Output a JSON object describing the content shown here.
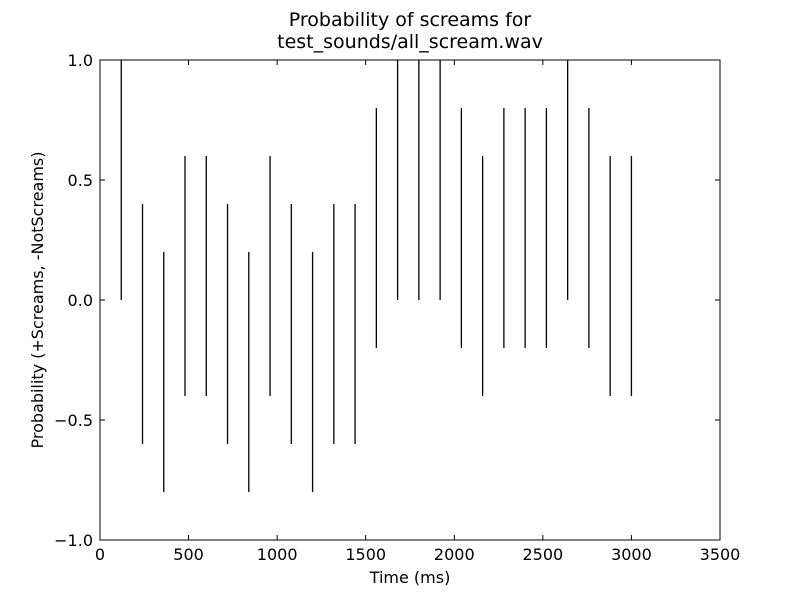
{
  "chart_data": {
    "type": "bar",
    "title": "Probability of screams for",
    "subtitle": "test_sounds/all_scream.wav",
    "xlabel": "Time (ms)",
    "ylabel": "Probability (+Screams, -NotScreams)",
    "xlim": [
      0,
      3500
    ],
    "ylim": [
      -1.0,
      1.0
    ],
    "x_ticks": [
      0,
      500,
      1000,
      1500,
      2000,
      2500,
      3000,
      3500
    ],
    "x_tick_labels": [
      "0",
      "500",
      "1000",
      "1500",
      "2000",
      "2500",
      "3000",
      "3500"
    ],
    "y_ticks": [
      -1.0,
      -0.5,
      0.0,
      0.5,
      1.0
    ],
    "y_tick_labels": [
      "−1.0",
      "−0.5",
      "0.0",
      "0.5",
      "1.0"
    ],
    "grid": false,
    "line_color": "#000000",
    "series": [
      {
        "points": [
          {
            "x": 120,
            "low": 0.0,
            "high": 1.0
          },
          {
            "x": 240,
            "low": -0.6,
            "high": 0.4
          },
          {
            "x": 360,
            "low": -0.8,
            "high": 0.2
          },
          {
            "x": 480,
            "low": -0.4,
            "high": 0.6
          },
          {
            "x": 600,
            "low": -0.4,
            "high": 0.6
          },
          {
            "x": 720,
            "low": -0.6,
            "high": 0.4
          },
          {
            "x": 840,
            "low": -0.8,
            "high": 0.2
          },
          {
            "x": 960,
            "low": -0.4,
            "high": 0.6
          },
          {
            "x": 1080,
            "low": -0.6,
            "high": 0.4
          },
          {
            "x": 1200,
            "low": -0.8,
            "high": 0.2
          },
          {
            "x": 1320,
            "low": -0.6,
            "high": 0.4
          },
          {
            "x": 1440,
            "low": -0.6,
            "high": 0.4
          },
          {
            "x": 1560,
            "low": -0.2,
            "high": 0.8
          },
          {
            "x": 1680,
            "low": 0.0,
            "high": 1.0
          },
          {
            "x": 1800,
            "low": 0.0,
            "high": 1.0
          },
          {
            "x": 1920,
            "low": 0.0,
            "high": 1.0
          },
          {
            "x": 2040,
            "low": -0.2,
            "high": 0.8
          },
          {
            "x": 2160,
            "low": -0.4,
            "high": 0.6
          },
          {
            "x": 2280,
            "low": -0.2,
            "high": 0.8
          },
          {
            "x": 2400,
            "low": -0.2,
            "high": 0.8
          },
          {
            "x": 2520,
            "low": -0.2,
            "high": 0.8
          },
          {
            "x": 2640,
            "low": 0.0,
            "high": 1.0
          },
          {
            "x": 2760,
            "low": -0.2,
            "high": 0.8
          },
          {
            "x": 2880,
            "low": -0.4,
            "high": 0.6
          },
          {
            "x": 3000,
            "low": -0.4,
            "high": 0.6
          }
        ]
      }
    ]
  }
}
